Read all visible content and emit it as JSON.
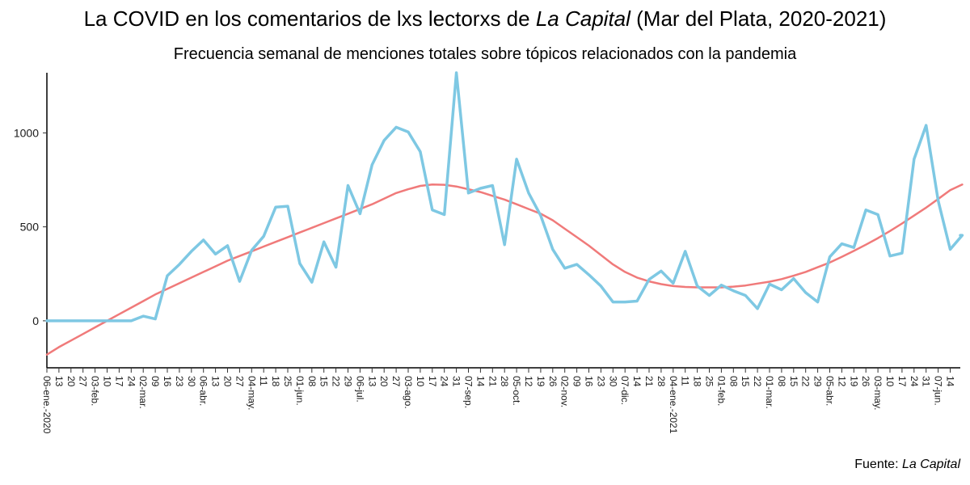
{
  "title": {
    "main": "La COVID en los comentarios de lxs lectorxs de ",
    "italic": "La Capital",
    "tail": " (Mar del Plata, 2020-2021)"
  },
  "subtitle": "Frecuencia semanal de menciones totales sobre tópicos relacionados con la pandemia",
  "caption": {
    "prefix": "Fuente: ",
    "italic": "La Capital"
  },
  "colors": {
    "series": "#7ec8e3",
    "trend": "#f07a7a",
    "axis": "#000000"
  },
  "chart_data": {
    "type": "line",
    "ylim": [
      -250,
      1320
    ],
    "yticks": [
      0,
      500,
      1000
    ],
    "x_labels": [
      "06-ene.-2020",
      "13",
      "20",
      "27",
      "03-feb.",
      "10",
      "17",
      "24",
      "02-mar.",
      "09",
      "16",
      "23",
      "30",
      "06-abr.",
      "13",
      "20",
      "27",
      "04-may.",
      "11",
      "18",
      "25",
      "01-jun.",
      "08",
      "15",
      "22",
      "29",
      "06-jul.",
      "13",
      "20",
      "27",
      "03-ago.",
      "10",
      "17",
      "24",
      "31",
      "07-sep.",
      "14",
      "21",
      "28",
      "05-oct.",
      "12",
      "19",
      "26",
      "02-nov.",
      "09",
      "16",
      "23",
      "30",
      "07-dic.",
      "14",
      "21",
      "28",
      "04-ene.-2021",
      "11",
      "18",
      "25",
      "01-feb.",
      "08",
      "15",
      "22",
      "01-mar.",
      "08",
      "15",
      "22",
      "29",
      "05-abr.",
      "12",
      "19",
      "26",
      "03-may.",
      "10",
      "17",
      "24",
      "31",
      "07-jun.",
      "14"
    ],
    "series": [
      {
        "kind": "weekly-mentions",
        "values": [
          0,
          0,
          0,
          0,
          0,
          0,
          0,
          0,
          25,
          10,
          240,
          300,
          370,
          430,
          355,
          400,
          210,
          375,
          450,
          605,
          610,
          305,
          205,
          420,
          285,
          720,
          570,
          830,
          960,
          1030,
          1005,
          900,
          590,
          565,
          1320,
          680,
          705,
          720,
          405,
          860,
          680,
          560,
          380,
          280,
          300,
          245,
          185,
          100,
          100,
          105,
          220,
          265,
          200,
          370,
          185,
          135,
          190,
          160,
          135,
          65,
          195,
          165,
          225,
          150,
          100,
          340,
          410,
          390,
          590,
          565,
          345,
          360,
          860,
          1040,
          640,
          380,
          455
        ],
        "extra_end_value": 455
      },
      {
        "kind": "smoothed-trend",
        "values": [
          -180,
          -140,
          -105,
          -70,
          -35,
          0,
          35,
          70,
          105,
          140,
          170,
          200,
          230,
          260,
          290,
          320,
          345,
          370,
          395,
          420,
          445,
          470,
          495,
          520,
          545,
          570,
          595,
          620,
          650,
          680,
          700,
          718,
          725,
          724,
          715,
          700,
          685,
          665,
          645,
          620,
          595,
          570,
          535,
          490,
          445,
          400,
          350,
          300,
          260,
          230,
          210,
          195,
          185,
          180,
          178,
          178,
          178,
          182,
          188,
          198,
          208,
          222,
          240,
          260,
          285,
          310,
          340,
          372,
          405,
          440,
          478,
          518,
          560,
          602,
          648,
          695,
          725
        ]
      }
    ]
  }
}
